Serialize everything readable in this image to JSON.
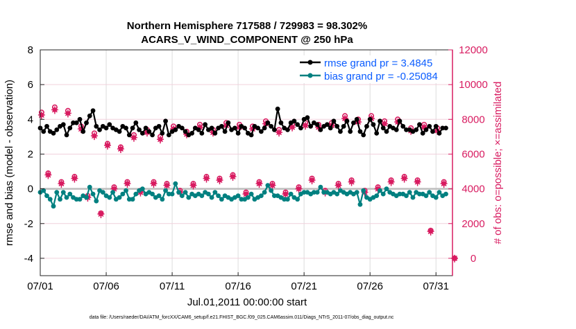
{
  "chart_data": {
    "type": "line",
    "title": "Northern Hemisphere 717588 / 729983 = 98.302%",
    "subtitle": "ACARS_V_WIND_COMPONENT @ 250 hPa",
    "xlabel": "Jul.01,2011 00:00:00 start",
    "ylabel": "rmse and bias (model - observation)",
    "ylabel_right": "# of obs: o=possible; ×=assimilated",
    "xlim_days": [
      0,
      31.25
    ],
    "ylim": [
      -5,
      8
    ],
    "ylim_right": [
      -1000,
      12000
    ],
    "x_tick_labels": [
      "07/01",
      "07/06",
      "07/11",
      "07/16",
      "07/21",
      "07/26",
      "07/31"
    ],
    "x_tick_days": [
      0,
      5,
      10,
      15,
      20,
      25,
      30
    ],
    "y_ticks": [
      -4,
      -2,
      0,
      2,
      4,
      6,
      8
    ],
    "y_ticks_right": [
      0,
      2000,
      4000,
      6000,
      8000,
      10000,
      12000
    ],
    "grid": true,
    "legend_position": "top-right",
    "colors": {
      "rmse": "#000000",
      "bias": "#008080",
      "obs": "#d81b60",
      "legend_text": "#0a5cff",
      "zero_line": "#bdbdbd"
    },
    "time_step_days_rmse_bias": 0.25,
    "time_step_days_obs": 0.5,
    "series": [
      {
        "name": "rmse grand pr = 3.4845",
        "axis": "left",
        "values": [
          3.5,
          3.3,
          3.6,
          3.3,
          3.2,
          3.4,
          3.6,
          3.7,
          3.1,
          3.5,
          3.8,
          3.8,
          4.0,
          3.3,
          3.8,
          4.2,
          4.5,
          3.6,
          3.4,
          3.6,
          3.5,
          3.7,
          3.5,
          3.4,
          3.3,
          3.6,
          3.5,
          3.1,
          3.5,
          3.8,
          3.4,
          3.2,
          3.5,
          3.3,
          3.1,
          3.5,
          3.6,
          3.2,
          3.9,
          3.1,
          3.3,
          3.4,
          3.6,
          3.5,
          3.3,
          3.1,
          3.2,
          3.5,
          3.4,
          3.2,
          3.7,
          3.4,
          3.5,
          3.2,
          3.5,
          3.6,
          3.3,
          3.8,
          3.4,
          3.5,
          3.2,
          3.6,
          3.5,
          3.2,
          3.1,
          3.6,
          3.5,
          3.3,
          3.5,
          3.8,
          3.6,
          3.4,
          4.6,
          3.8,
          3.5,
          3.4,
          3.8,
          3.9,
          3.7,
          3.5,
          4.0,
          4.1,
          3.6,
          3.8,
          3.7,
          3.4,
          3.6,
          3.7,
          3.5,
          3.9,
          3.6,
          3.3,
          3.6,
          3.9,
          3.3,
          3.8,
          4.0,
          3.3,
          3.1,
          3.6,
          4.0,
          3.7,
          3.2,
          3.9,
          3.5,
          3.3,
          3.6,
          3.5,
          3.4,
          3.9,
          3.6,
          3.4,
          3.4,
          3.3,
          3.4,
          3.7,
          3.2,
          3.4,
          3.6,
          3.3,
          3.6,
          3.2,
          3.5,
          3.5
        ]
      },
      {
        "name": "bias grand pr = -0.25084",
        "axis": "left",
        "values": [
          -0.2,
          -0.1,
          -0.4,
          -0.6,
          -1.0,
          -0.2,
          -0.6,
          -0.2,
          -0.5,
          -0.3,
          -0.5,
          -0.6,
          -0.6,
          -0.4,
          -0.5,
          0.1,
          -0.3,
          -0.7,
          -0.1,
          -0.2,
          -0.4,
          -0.5,
          -0.2,
          -0.6,
          -0.5,
          -0.3,
          -0.1,
          -0.6,
          -0.6,
          -0.3,
          -0.1,
          0.0,
          -0.3,
          -0.2,
          -0.3,
          -0.5,
          -0.4,
          -0.6,
          -0.1,
          -0.3,
          -0.3,
          0.3,
          -0.2,
          -0.4,
          -0.2,
          -0.5,
          -0.3,
          -0.4,
          -0.3,
          -0.4,
          -0.2,
          -0.3,
          -0.5,
          -0.2,
          -0.4,
          -0.6,
          -0.4,
          -0.5,
          -0.6,
          -0.5,
          -0.4,
          -0.6,
          -0.6,
          -0.5,
          -0.3,
          -0.6,
          -0.5,
          -0.4,
          -0.2,
          0.2,
          -0.1,
          -0.4,
          -0.4,
          -0.5,
          -0.6,
          -0.6,
          -0.3,
          -0.5,
          -0.6,
          -0.3,
          -0.2,
          -0.2,
          -0.3,
          -0.2,
          -0.2,
          0.1,
          -0.2,
          -0.2,
          -0.3,
          -0.2,
          -0.3,
          -0.1,
          -0.2,
          -0.3,
          -0.2,
          -0.3,
          -0.2,
          -0.9,
          -0.1,
          -0.5,
          -0.6,
          -0.5,
          -0.4,
          -0.1,
          -0.3,
          0.0,
          -0.2,
          -0.3,
          -0.4,
          -0.3,
          -0.3,
          -0.4,
          -0.2,
          -0.5,
          -0.2,
          -0.3,
          -0.3,
          -0.4,
          -0.2,
          -0.4,
          -0.5,
          -0.2,
          -0.4,
          -0.3
        ]
      },
      {
        "name": "possible",
        "axis": "right",
        "values": [
          8400,
          4900,
          8700,
          4400,
          8500,
          4700,
          7600,
          3600,
          7200,
          2600,
          6600,
          4100,
          6400,
          4400,
          7100,
          3900,
          7400,
          4400,
          7000,
          4300,
          7600,
          3900,
          7300,
          4300,
          7700,
          4700,
          7400,
          4600,
          7800,
          4800,
          7700,
          3800,
          7600,
          4400,
          7900,
          4300,
          7400,
          3800,
          7700,
          4100,
          7800,
          4600,
          7700,
          3900,
          7800,
          4300,
          8200,
          4500,
          8000,
          3900,
          8200,
          4100,
          7900,
          4500,
          8000,
          4700,
          7500,
          4500,
          7700,
          1600,
          7500,
          4400,
          0
        ]
      },
      {
        "name": "assimilated",
        "axis": "right",
        "values": [
          8250,
          4800,
          8550,
          4300,
          8350,
          4600,
          7450,
          3500,
          7050,
          2550,
          6500,
          4000,
          6300,
          4300,
          6950,
          3800,
          7250,
          4300,
          6850,
          4200,
          7450,
          3800,
          7150,
          4200,
          7550,
          4600,
          7250,
          4500,
          7650,
          4700,
          7550,
          3700,
          7450,
          4300,
          7750,
          4200,
          7250,
          3700,
          7550,
          4000,
          7650,
          4500,
          7550,
          3800,
          7650,
          4200,
          8050,
          4400,
          7850,
          3800,
          8050,
          4000,
          7750,
          4400,
          7850,
          4600,
          7350,
          4400,
          7550,
          1550,
          7350,
          4300,
          0
        ]
      }
    ]
  },
  "footer": "data file: /Users/raeder/DAI/ATM_forcXX/CAM6_setup/f.e21.FHIST_BGC.f09_025.CAM6assim.011/Diags_NTrS_2011-07/obs_diag_output.nc"
}
